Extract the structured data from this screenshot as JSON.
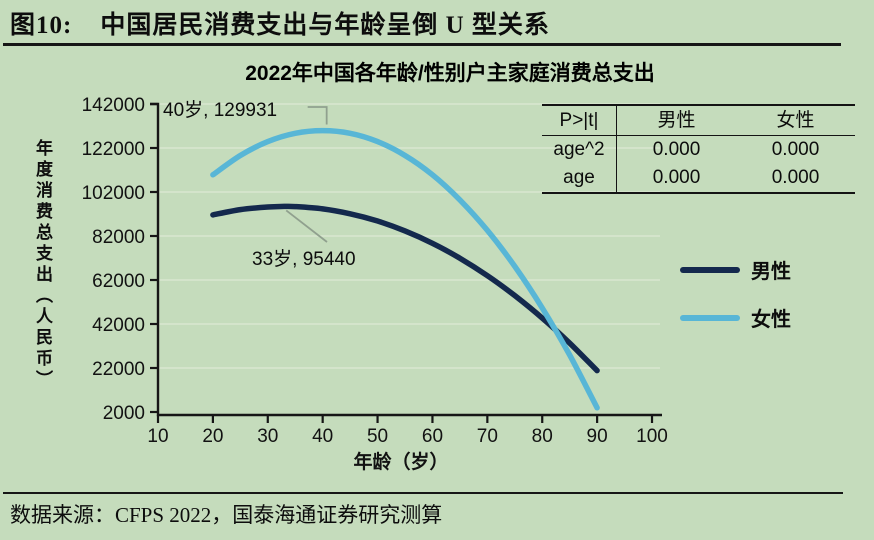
{
  "page": {
    "title_prefix": "图10:",
    "title": "中国居民消费支出与年龄呈倒 U 型关系",
    "source": "数据来源：CFPS 2022，国泰海通证券研究测算"
  },
  "colors": {
    "background": "#c5dcbc",
    "male_line": "#14294d",
    "female_line": "#58b6d6",
    "axis": "#161616",
    "gridline": "#d9e7d0",
    "leader_line": "#90a08e"
  },
  "chart_data": {
    "type": "line",
    "title": "2022年中国各年龄/性别户主家庭消费总支出",
    "xlabel": "年龄（岁）",
    "ylabel": "年度消费总支出（人民币）",
    "xlim": [
      10,
      100
    ],
    "ylim": [
      2000,
      142000
    ],
    "x_ticks": [
      10,
      20,
      30,
      40,
      50,
      60,
      70,
      80,
      90,
      100
    ],
    "y_ticks": [
      2000,
      22000,
      42000,
      62000,
      82000,
      102000,
      122000,
      142000
    ],
    "grid": "horizontal",
    "legend_position": "right",
    "series": [
      {
        "name": "男性",
        "color": "#14294d",
        "x": [
          20,
          25,
          30,
          33,
          35,
          40,
          45,
          50,
          55,
          60,
          65,
          70,
          75,
          80,
          85,
          90
        ],
        "y": [
          91600,
          94000,
          95200,
          95440,
          95350,
          94300,
          92100,
          88800,
          84300,
          78700,
          71900,
          64000,
          54900,
          44700,
          33300,
          20800
        ]
      },
      {
        "name": "女性",
        "color": "#58b6d6",
        "x": [
          20,
          25,
          30,
          35,
          40,
          45,
          50,
          55,
          60,
          65,
          70,
          75,
          80,
          85,
          90
        ],
        "y": [
          109800,
          118600,
          124900,
          128700,
          129931,
          128700,
          124900,
          118600,
          109800,
          98400,
          84600,
          68200,
          49300,
          27900,
          3900
        ]
      }
    ],
    "annotations": [
      {
        "text": "40岁, 129931",
        "age": 40,
        "value": 129931,
        "series": "女性"
      },
      {
        "text": "33岁, 95440",
        "age": 33,
        "value": 95440,
        "series": "男性"
      }
    ],
    "stats_table": {
      "header": [
        "P>|t|",
        "男性",
        "女性"
      ],
      "rows": [
        [
          "age^2",
          "0.000",
          "0.000"
        ],
        [
          "age",
          "0.000",
          "0.000"
        ]
      ]
    }
  }
}
